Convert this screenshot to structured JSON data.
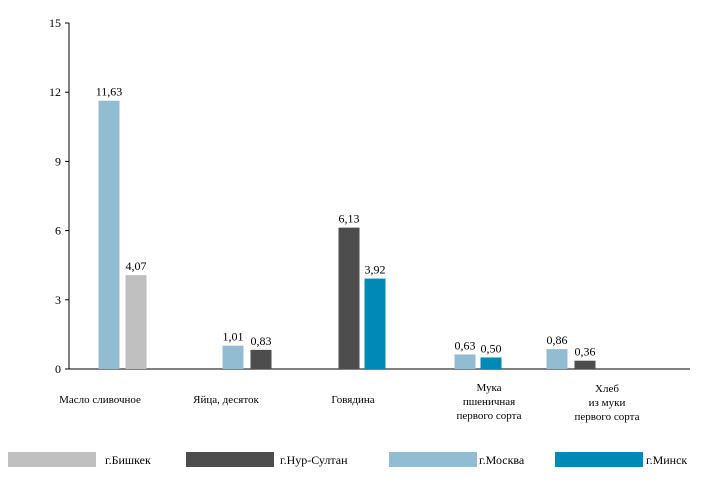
{
  "chart_data": {
    "type": "bar",
    "title": "",
    "xlabel": "",
    "ylabel": "",
    "ylim": [
      0,
      15
    ],
    "yticks": [
      0,
      3,
      6,
      9,
      12,
      15
    ],
    "grid": false,
    "legend_position": "bottom",
    "categories": [
      [
        "Масло сливочное"
      ],
      [
        "Яйца, десяток"
      ],
      [
        "Говядина"
      ],
      [
        "Мука",
        "пшеничная",
        "первого сорта"
      ],
      [
        "Хлеб",
        "из муки",
        "первого сорта"
      ]
    ],
    "series": [
      {
        "name": "г.Бишкек",
        "color": "#c0c0c0",
        "values": [
          4.07,
          null,
          null,
          null,
          null
        ],
        "labels": [
          "4,07",
          "",
          "",
          "",
          ""
        ]
      },
      {
        "name": "г.Нур-Султан",
        "color": "#4d4d4d",
        "values": [
          null,
          0.83,
          6.13,
          null,
          0.36
        ],
        "labels": [
          "",
          "0,83",
          "6,13",
          "",
          "0,36"
        ]
      },
      {
        "name": "г.Москва",
        "color": "#92bcd2",
        "values": [
          11.63,
          1.01,
          null,
          0.63,
          0.86
        ],
        "labels": [
          "11,63",
          "1,01",
          "",
          "0,63",
          "0,86"
        ]
      },
      {
        "name": "г.Минск",
        "color": "#0089b4",
        "values": [
          null,
          null,
          3.92,
          0.5,
          null
        ],
        "labels": [
          "",
          "",
          "3,92",
          "0,50",
          ""
        ]
      }
    ]
  }
}
